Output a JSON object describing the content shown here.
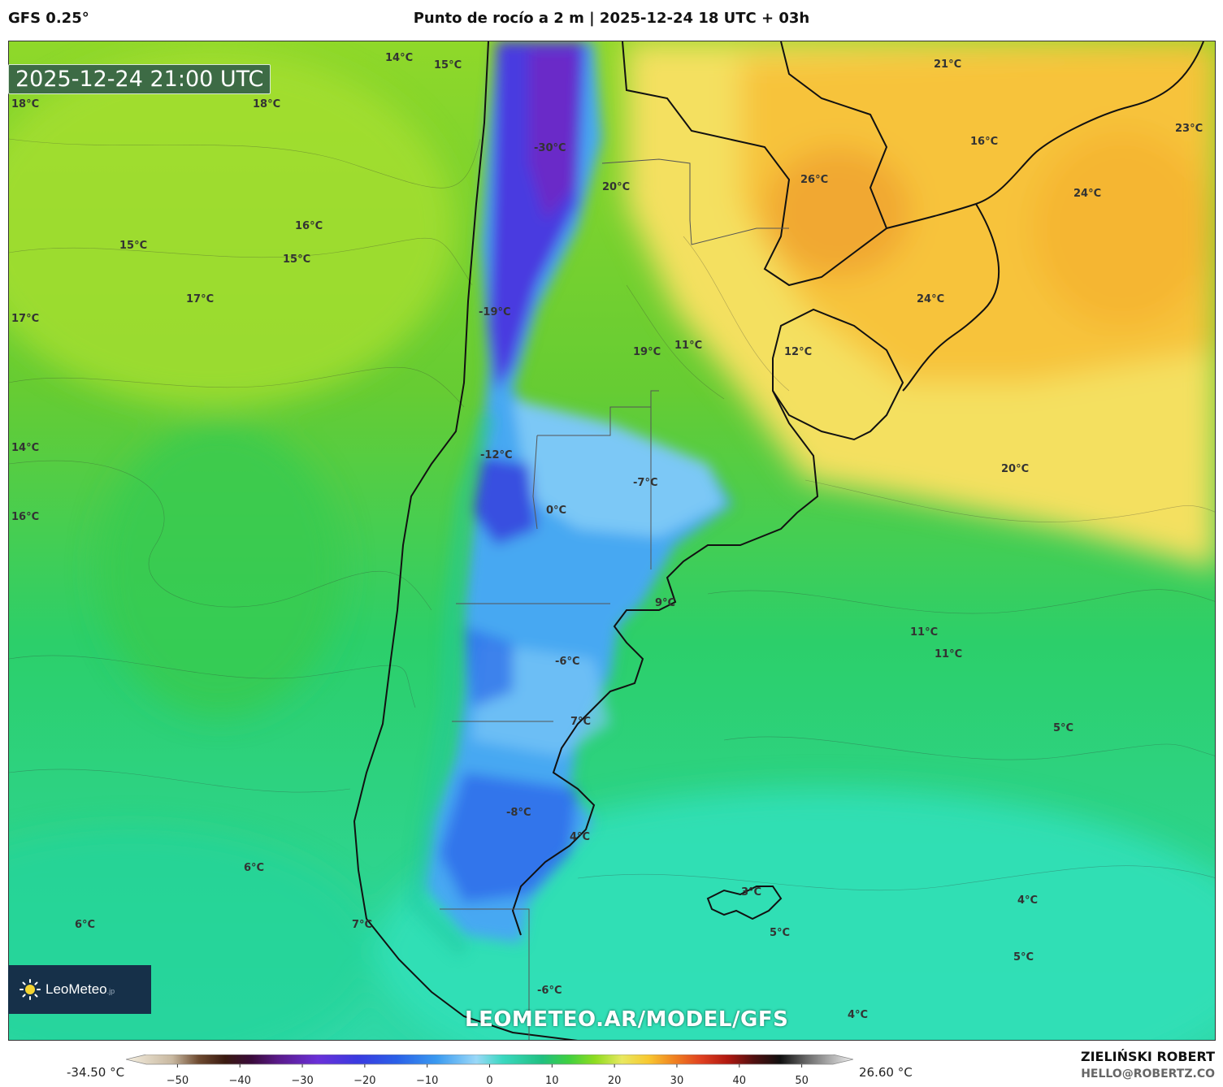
{
  "header": {
    "model": "GFS 0.25°",
    "title": "Punto de rocío a 2 m | 2025-12-24 18 UTC + 03h"
  },
  "valid_time": "2025-12-24 21:00 UTC",
  "map_labels": [
    {
      "id": "l1",
      "text": "14°C"
    },
    {
      "id": "l2",
      "text": "15°C"
    },
    {
      "id": "l3",
      "text": "18°C"
    },
    {
      "id": "l4",
      "text": "18°C"
    },
    {
      "id": "l5",
      "text": "21°C"
    },
    {
      "id": "l6",
      "text": "23°C"
    },
    {
      "id": "l7",
      "text": "-30°C"
    },
    {
      "id": "l8",
      "text": "16°C"
    },
    {
      "id": "l9",
      "text": "20°C"
    },
    {
      "id": "l10",
      "text": "26°C"
    },
    {
      "id": "l11",
      "text": "24°C"
    },
    {
      "id": "l12",
      "text": "16°C"
    },
    {
      "id": "l13",
      "text": "15°C"
    },
    {
      "id": "l14",
      "text": "15°C"
    },
    {
      "id": "l15",
      "text": "17°C"
    },
    {
      "id": "l16",
      "text": "17°C"
    },
    {
      "id": "l17",
      "text": "24°C"
    },
    {
      "id": "l18",
      "text": "-19°C"
    },
    {
      "id": "l19",
      "text": "19°C"
    },
    {
      "id": "l20",
      "text": "11°C"
    },
    {
      "id": "l21",
      "text": "12°C"
    },
    {
      "id": "l22",
      "text": "14°C"
    },
    {
      "id": "l23",
      "text": "-12°C"
    },
    {
      "id": "l24",
      "text": "-7°C"
    },
    {
      "id": "l25",
      "text": "20°C"
    },
    {
      "id": "l26",
      "text": "16°C"
    },
    {
      "id": "l27",
      "text": "0°C"
    },
    {
      "id": "l28",
      "text": "9°C"
    },
    {
      "id": "l29",
      "text": "11°C"
    },
    {
      "id": "l30",
      "text": "11°C"
    },
    {
      "id": "l31",
      "text": "-6°C"
    },
    {
      "id": "l32",
      "text": "7°C"
    },
    {
      "id": "l33",
      "text": "5°C"
    },
    {
      "id": "l34",
      "text": "-8°C"
    },
    {
      "id": "l35",
      "text": "4°C"
    },
    {
      "id": "l36",
      "text": "6°C"
    },
    {
      "id": "l37",
      "text": "3°C"
    },
    {
      "id": "l38",
      "text": "4°C"
    },
    {
      "id": "l39",
      "text": "6°C"
    },
    {
      "id": "l40",
      "text": "7°C"
    },
    {
      "id": "l41",
      "text": "5°C"
    },
    {
      "id": "l42",
      "text": "5°C"
    },
    {
      "id": "l43",
      "text": "-6°C"
    },
    {
      "id": "l44",
      "text": "4°C"
    }
  ],
  "brand": {
    "logo_text": "LeoMeteo",
    "logo_suffix": ".jp"
  },
  "watermark": "LEOMETEO.AR/MODEL/GFS",
  "colorbar": {
    "min_label": "-34.50 °C",
    "max_label": "26.60 °C",
    "ticks": [
      "−50",
      "−40",
      "−30",
      "−20",
      "−10",
      "0",
      "10",
      "20",
      "30",
      "40",
      "50"
    ],
    "tick_values": [
      -50,
      -40,
      -30,
      -20,
      -10,
      0,
      10,
      20,
      30,
      40,
      50
    ],
    "range": [
      -55,
      55
    ],
    "stops": [
      {
        "v": -55,
        "c": "#f5efe0"
      },
      {
        "v": -48,
        "c": "#c8b8a0"
      },
      {
        "v": -44,
        "c": "#6e4a30"
      },
      {
        "v": -40,
        "c": "#3a1a10"
      },
      {
        "v": -36,
        "c": "#3a0a3a"
      },
      {
        "v": -32,
        "c": "#5a1a8a"
      },
      {
        "v": -26,
        "c": "#6a30d8"
      },
      {
        "v": -20,
        "c": "#3a3ae0"
      },
      {
        "v": -14,
        "c": "#2a60e8"
      },
      {
        "v": -8,
        "c": "#3a9af0"
      },
      {
        "v": -2,
        "c": "#9ad8f8"
      },
      {
        "v": 2,
        "c": "#3ad8c0"
      },
      {
        "v": 8,
        "c": "#20c080"
      },
      {
        "v": 12,
        "c": "#40d040"
      },
      {
        "v": 16,
        "c": "#90dc20"
      },
      {
        "v": 20,
        "c": "#e8e860"
      },
      {
        "v": 24,
        "c": "#f8c830"
      },
      {
        "v": 28,
        "c": "#f08020"
      },
      {
        "v": 32,
        "c": "#e04020"
      },
      {
        "v": 36,
        "c": "#b01810"
      },
      {
        "v": 40,
        "c": "#501010"
      },
      {
        "v": 44,
        "c": "#101010"
      },
      {
        "v": 48,
        "c": "#6a6a6a"
      },
      {
        "v": 55,
        "c": "#f0f0f0"
      }
    ]
  },
  "author": {
    "name": "ZIELIŃSKI ROBERT",
    "email": "HELLO@ROBERTZ.CO"
  }
}
